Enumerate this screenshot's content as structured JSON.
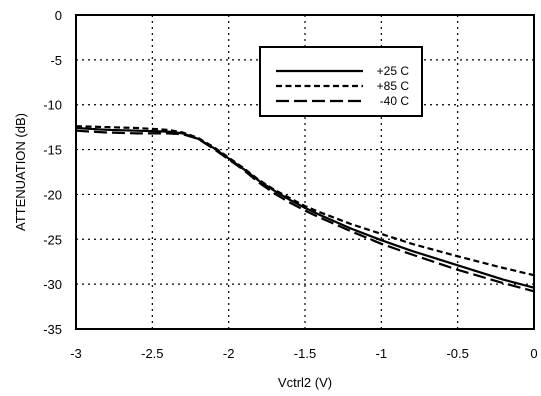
{
  "chart_data": {
    "type": "line",
    "title": "",
    "xlabel": "Vctrl2 (V)",
    "ylabel": "ATTENUATION (dB)",
    "xlim": [
      -3,
      0
    ],
    "ylim": [
      -35,
      0
    ],
    "x_ticks": [
      "-3",
      "-2.5",
      "-2",
      "-1.5",
      "-1",
      "-0.5",
      "0"
    ],
    "y_ticks": [
      "0",
      "-5",
      "-10",
      "-15",
      "-20",
      "-25",
      "-30",
      "-35"
    ],
    "grid": true,
    "legend_position": "top-right",
    "series": [
      {
        "name": "+25 C",
        "style": "solid",
        "x": [
          -3.0,
          -2.8,
          -2.6,
          -2.4,
          -2.3,
          -2.2,
          -2.1,
          -2.0,
          -1.9,
          -1.8,
          -1.7,
          -1.6,
          -1.5,
          -1.4,
          -1.2,
          -1.0,
          -0.8,
          -0.5,
          -0.2,
          0.0
        ],
        "y": [
          -12.6,
          -12.8,
          -12.9,
          -13.0,
          -13.2,
          -13.8,
          -14.8,
          -16.0,
          -17.2,
          -18.5,
          -19.6,
          -20.6,
          -21.5,
          -22.3,
          -23.8,
          -25.1,
          -26.3,
          -27.9,
          -29.5,
          -30.4
        ]
      },
      {
        "name": "+85 C",
        "style": "short-dash",
        "x": [
          -3.0,
          -2.8,
          -2.6,
          -2.4,
          -2.3,
          -2.2,
          -2.1,
          -2.0,
          -1.9,
          -1.8,
          -1.7,
          -1.6,
          -1.5,
          -1.4,
          -1.2,
          -1.0,
          -0.8,
          -0.5,
          -0.2,
          0.0
        ],
        "y": [
          -12.4,
          -12.5,
          -12.6,
          -12.8,
          -13.1,
          -13.7,
          -14.7,
          -15.9,
          -17.1,
          -18.4,
          -19.5,
          -20.4,
          -21.3,
          -22.0,
          -23.3,
          -24.4,
          -25.5,
          -26.9,
          -28.2,
          -29.0
        ]
      },
      {
        "name": "-40 C",
        "style": "long-dash",
        "x": [
          -3.0,
          -2.8,
          -2.6,
          -2.4,
          -2.3,
          -2.2,
          -2.1,
          -2.0,
          -1.9,
          -1.8,
          -1.7,
          -1.6,
          -1.5,
          -1.4,
          -1.2,
          -1.0,
          -0.8,
          -0.5,
          -0.2,
          0.0
        ],
        "y": [
          -12.9,
          -13.1,
          -13.2,
          -13.2,
          -13.3,
          -13.8,
          -14.9,
          -16.1,
          -17.3,
          -18.7,
          -19.9,
          -20.9,
          -21.8,
          -22.6,
          -24.1,
          -25.5,
          -26.7,
          -28.4,
          -29.9,
          -30.8
        ]
      }
    ]
  }
}
